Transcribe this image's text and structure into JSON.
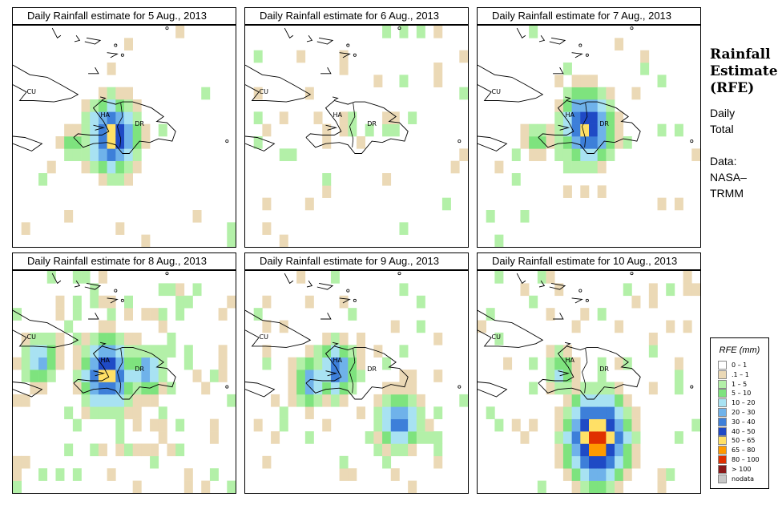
{
  "chart_data": {
    "type": "heatmap",
    "panels": [
      {
        "title": "Daily Rainfall estimate for  5 Aug., 2013",
        "hotspots": [
          {
            "lon": -72.5,
            "lat": 18.4,
            "cls": 6
          },
          {
            "lon": -72.2,
            "lat": 18.5,
            "cls": 9
          },
          {
            "lon": -74.5,
            "lat": 18.2,
            "cls": 4
          }
        ],
        "scatter": 0.04
      },
      {
        "title": "Daily Rainfall estimate for  6 Aug., 2013",
        "hotspots": [
          {
            "lon": -71.8,
            "lat": 19.0,
            "cls": 3
          },
          {
            "lon": -69.5,
            "lat": 18.8,
            "cls": 3
          }
        ],
        "scatter": 0.08
      },
      {
        "title": "Daily Rainfall estimate for  7 Aug., 2013",
        "hotspots": [
          {
            "lon": -71.6,
            "lat": 18.9,
            "cls": 9
          },
          {
            "lon": -71.2,
            "lat": 18.8,
            "cls": 7
          },
          {
            "lon": -74.5,
            "lat": 18.4,
            "cls": 4
          }
        ],
        "scatter": 0.07
      },
      {
        "title": "Daily Rainfall estimate for  8 Aug., 2013",
        "hotspots": [
          {
            "lon": -72.5,
            "lat": 18.8,
            "cls": 9
          },
          {
            "lon": -70.2,
            "lat": 18.9,
            "cls": 6
          },
          {
            "lon": -76.4,
            "lat": 19.4,
            "cls": 6
          },
          {
            "lon": -73.5,
            "lat": 19.2,
            "cls": 4
          }
        ],
        "scatter": 0.22
      },
      {
        "title": "Daily Rainfall estimate for  9 Aug., 2013",
        "hotspots": [
          {
            "lon": -72.7,
            "lat": 19.0,
            "cls": 7
          },
          {
            "lon": -74.2,
            "lat": 18.5,
            "cls": 6
          },
          {
            "lon": -69.0,
            "lat": 16.9,
            "cls": 7
          }
        ],
        "scatter": 0.16
      },
      {
        "title": "Daily Rainfall estimate for  10 Aug., 2013",
        "hotspots": [
          {
            "lon": -71.0,
            "lat": 16.2,
            "cls": 11
          },
          {
            "lon": -73.1,
            "lat": 18.9,
            "cls": 5
          }
        ],
        "scatter": 0.13
      }
    ],
    "region_labels": [
      {
        "text": "CU",
        "lon": -76.9,
        "lat": 20.3
      },
      {
        "text": "HA",
        "lon": -72.6,
        "lat": 19.35
      },
      {
        "text": "DR",
        "lon": -70.6,
        "lat": 19.0
      }
    ],
    "extent": {
      "lon": [
        -78,
        -65
      ],
      "lat": [
        14,
        23
      ]
    },
    "legend": {
      "title": "RFE (mm)",
      "classes": [
        {
          "label": "0 – 1",
          "color": "#ffffff"
        },
        {
          "label": ".1 – 1",
          "color": "#ebd9b6"
        },
        {
          "label": "1 – 5",
          "color": "#b3f0a8"
        },
        {
          "label": "5 – 10",
          "color": "#7ee37e"
        },
        {
          "label": "10 – 20",
          "color": "#a8e2f2"
        },
        {
          "label": "20 – 30",
          "color": "#6fb2ea"
        },
        {
          "label": "30 – 40",
          "color": "#3d7fd9"
        },
        {
          "label": "40 – 50",
          "color": "#1f4ac5"
        },
        {
          "label": "50 – 65",
          "color": "#ffe066"
        },
        {
          "label": "65 – 80",
          "color": "#ff9a00"
        },
        {
          "label": "80 – 100",
          "color": "#e03000"
        },
        {
          "label": "> 100",
          "color": "#8b1a1a"
        },
        {
          "label": "nodata",
          "color": "#c8c8c8"
        }
      ]
    }
  },
  "side": {
    "title": [
      "Rainfall",
      "Estimate",
      "(RFE)"
    ],
    "daily": [
      "Daily",
      "Total"
    ],
    "data": [
      "Data:",
      "NASA–",
      "TRMM"
    ]
  }
}
